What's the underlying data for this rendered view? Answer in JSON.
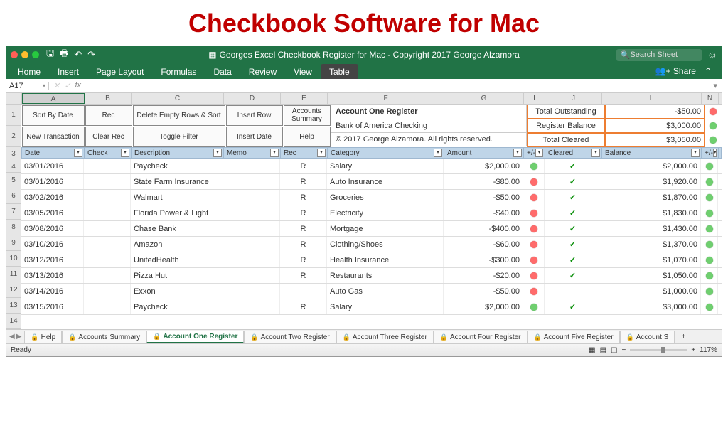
{
  "page_title": "Checkbook Software for Mac",
  "window": {
    "title": "Georges Excel Checkbook Register for Mac - Copyright 2017 George Alzamora",
    "search_placeholder": "Search Sheet"
  },
  "ribbon": {
    "tabs": [
      "Home",
      "Insert",
      "Page Layout",
      "Formulas",
      "Data",
      "Review",
      "View",
      "Table"
    ],
    "active": "Table",
    "share": "Share"
  },
  "formula": {
    "name_box": "A17"
  },
  "columns": [
    "A",
    "B",
    "C",
    "D",
    "E",
    "F",
    "G",
    "I",
    "J",
    "L",
    "N"
  ],
  "col_widths": [
    "wA",
    "wB",
    "wC",
    "wD",
    "wE",
    "wF",
    "wG",
    "wI",
    "wJ",
    "wL",
    "wN"
  ],
  "row_numbers": [
    1,
    2,
    3,
    4,
    5,
    6,
    7,
    8,
    9,
    10,
    11,
    12,
    13,
    14
  ],
  "buttons": {
    "r1": [
      "Sort By Date",
      "Rec",
      "Delete Empty Rows & Sort",
      "Insert Row",
      "Accounts Summary"
    ],
    "r2": [
      "New Transaction",
      "Clear Rec",
      "Toggle Filter",
      "Insert Date",
      "Help"
    ]
  },
  "info": {
    "line1": "Account One Register",
    "line2": "Bank of America Checking",
    "line3": "© 2017 George Alzamora.  All rights reserved."
  },
  "summary": [
    {
      "label": "Total Outstanding",
      "value": "-$50.00",
      "dot": "red"
    },
    {
      "label": "Register Balance",
      "value": "$3,000.00",
      "dot": "green"
    },
    {
      "label": "Total Cleared",
      "value": "$3,050.00",
      "dot": "green"
    }
  ],
  "headers": [
    "Date",
    "Check",
    "Description",
    "Memo",
    "Rec",
    "Category",
    "Amount",
    "+/-",
    "Cleared",
    "Balance",
    "+/-"
  ],
  "rows": [
    {
      "date": "03/01/2016",
      "check": "",
      "desc": "Paycheck",
      "memo": "",
      "rec": "R",
      "cat": "Salary",
      "amt": "$2,000.00",
      "dot": "green",
      "clr": "✓",
      "bal": "$2,000.00",
      "bdot": "green"
    },
    {
      "date": "03/01/2016",
      "check": "",
      "desc": "State Farm Insurance",
      "memo": "",
      "rec": "R",
      "cat": "Auto Insurance",
      "amt": "-$80.00",
      "dot": "red",
      "clr": "✓",
      "bal": "$1,920.00",
      "bdot": "green"
    },
    {
      "date": "03/02/2016",
      "check": "",
      "desc": "Walmart",
      "memo": "",
      "rec": "R",
      "cat": "Groceries",
      "amt": "-$50.00",
      "dot": "red",
      "clr": "✓",
      "bal": "$1,870.00",
      "bdot": "green"
    },
    {
      "date": "03/05/2016",
      "check": "",
      "desc": "Florida Power & Light",
      "memo": "",
      "rec": "R",
      "cat": "Electricity",
      "amt": "-$40.00",
      "dot": "red",
      "clr": "✓",
      "bal": "$1,830.00",
      "bdot": "green"
    },
    {
      "date": "03/08/2016",
      "check": "",
      "desc": "Chase Bank",
      "memo": "",
      "rec": "R",
      "cat": "Mortgage",
      "amt": "-$400.00",
      "dot": "red",
      "clr": "✓",
      "bal": "$1,430.00",
      "bdot": "green"
    },
    {
      "date": "03/10/2016",
      "check": "",
      "desc": "Amazon",
      "memo": "",
      "rec": "R",
      "cat": "Clothing/Shoes",
      "amt": "-$60.00",
      "dot": "red",
      "clr": "✓",
      "bal": "$1,370.00",
      "bdot": "green"
    },
    {
      "date": "03/12/2016",
      "check": "",
      "desc": "UnitedHealth",
      "memo": "",
      "rec": "R",
      "cat": "Health Insurance",
      "amt": "-$300.00",
      "dot": "red",
      "clr": "✓",
      "bal": "$1,070.00",
      "bdot": "green"
    },
    {
      "date": "03/13/2016",
      "check": "",
      "desc": "Pizza Hut",
      "memo": "",
      "rec": "R",
      "cat": "Restaurants",
      "amt": "-$20.00",
      "dot": "red",
      "clr": "✓",
      "bal": "$1,050.00",
      "bdot": "green"
    },
    {
      "date": "03/14/2016",
      "check": "",
      "desc": "Exxon",
      "memo": "",
      "rec": "",
      "cat": "Auto Gas",
      "amt": "-$50.00",
      "dot": "red",
      "clr": "",
      "bal": "$1,000.00",
      "bdot": "green"
    },
    {
      "date": "03/15/2016",
      "check": "",
      "desc": "Paycheck",
      "memo": "",
      "rec": "R",
      "cat": "Salary",
      "amt": "$2,000.00",
      "dot": "green",
      "clr": "✓",
      "bal": "$3,000.00",
      "bdot": "green"
    }
  ],
  "sheets": [
    "Help",
    "Accounts Summary",
    "Account One Register",
    "Account Two Register",
    "Account Three Register",
    "Account Four Register",
    "Account Five Register",
    "Account S"
  ],
  "active_sheet": "Account One Register",
  "status": {
    "ready": "Ready",
    "zoom": "117%"
  }
}
